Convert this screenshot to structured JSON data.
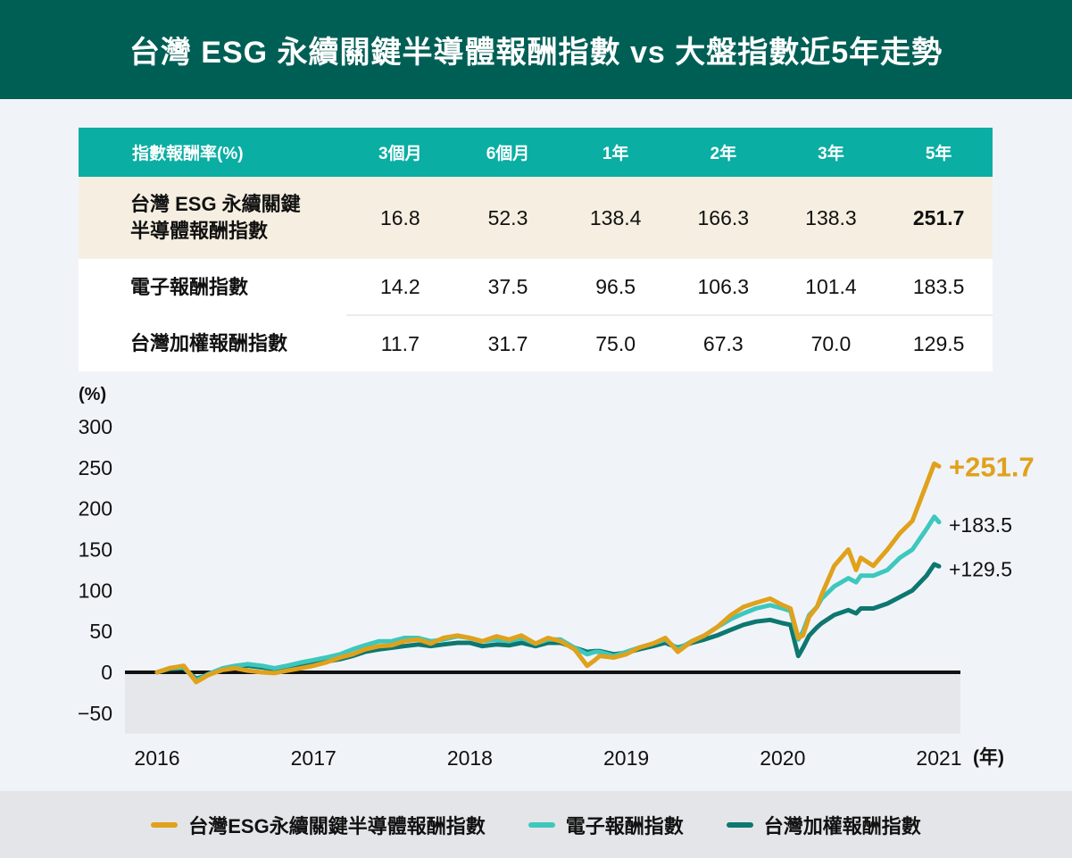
{
  "title": "台灣 ESG 永續關鍵半導體報酬指數 vs 大盤指數近5年走勢",
  "colors": {
    "header_bg": "#005f55",
    "table_header_bg": "#0aaea3",
    "highlight_row_bg": "#f6efe1",
    "esg": "#e0a11b",
    "electronics": "#3ec7bd",
    "taiex": "#0d7770"
  },
  "table": {
    "header": [
      "指數報酬率(%)",
      "3個月",
      "6個月",
      "1年",
      "2年",
      "3年",
      "5年"
    ],
    "rows": [
      {
        "name": [
          "台灣 ESG 永續關鍵",
          "半導體報酬指數"
        ],
        "values": [
          "16.8",
          "52.3",
          "138.4",
          "166.3",
          "138.3",
          "251.7"
        ]
      },
      {
        "name": [
          "電子報酬指數"
        ],
        "values": [
          "14.2",
          "37.5",
          "96.5",
          "106.3",
          "101.4",
          "183.5"
        ]
      },
      {
        "name": [
          "台灣加權報酬指數"
        ],
        "values": [
          "11.7",
          "31.7",
          "75.0",
          "67.3",
          "70.0",
          "129.5"
        ]
      }
    ]
  },
  "chart_data": {
    "type": "line",
    "ylabel": "(%)",
    "xlabel": "(年)",
    "ylim": [
      -75,
      300
    ],
    "yticks": [
      "300",
      "250",
      "200",
      "150",
      "100",
      "50",
      "0",
      "−50"
    ],
    "ytick_values": [
      300,
      250,
      200,
      150,
      100,
      50,
      0,
      -50
    ],
    "xlim": [
      2016.0,
      2021.0
    ],
    "xticks": [
      "2016",
      "2017",
      "2018",
      "2019",
      "2020",
      "2021"
    ],
    "xtick_values": [
      2016,
      2017,
      2018,
      2019,
      2020,
      2021
    ],
    "series": [
      {
        "name": "台灣ESG永續關鍵半導體報酬指數",
        "end_label": "+251.7",
        "x": [
          2016.0,
          2016.08,
          2016.17,
          2016.25,
          2016.33,
          2016.42,
          2016.5,
          2016.58,
          2016.67,
          2016.75,
          2016.83,
          2016.92,
          2017.0,
          2017.08,
          2017.17,
          2017.25,
          2017.33,
          2017.42,
          2017.5,
          2017.58,
          2017.67,
          2017.75,
          2017.83,
          2017.92,
          2018.0,
          2018.08,
          2018.17,
          2018.25,
          2018.33,
          2018.42,
          2018.5,
          2018.58,
          2018.67,
          2018.75,
          2018.8,
          2018.83,
          2018.92,
          2019.0,
          2019.08,
          2019.17,
          2019.25,
          2019.33,
          2019.42,
          2019.5,
          2019.58,
          2019.67,
          2019.75,
          2019.83,
          2019.92,
          2020.0,
          2020.05,
          2020.1,
          2020.13,
          2020.17,
          2020.22,
          2020.25,
          2020.33,
          2020.42,
          2020.47,
          2020.5,
          2020.58,
          2020.67,
          2020.75,
          2020.83,
          2020.92,
          2020.97,
          2021.0
        ],
        "y": [
          0,
          5,
          8,
          -12,
          -3,
          3,
          5,
          2,
          0,
          -1,
          2,
          5,
          8,
          12,
          18,
          22,
          28,
          32,
          33,
          38,
          40,
          35,
          42,
          45,
          42,
          38,
          44,
          40,
          45,
          35,
          42,
          38,
          28,
          8,
          15,
          20,
          18,
          22,
          30,
          35,
          42,
          25,
          38,
          45,
          55,
          70,
          80,
          85,
          90,
          82,
          78,
          42,
          45,
          68,
          80,
          95,
          130,
          150,
          125,
          140,
          130,
          150,
          170,
          185,
          230,
          255,
          251.7
        ]
      },
      {
        "name": "電子報酬指數",
        "end_label": "+183.5",
        "x": [
          2016.0,
          2016.08,
          2016.17,
          2016.25,
          2016.33,
          2016.42,
          2016.5,
          2016.58,
          2016.67,
          2016.75,
          2016.83,
          2016.92,
          2017.0,
          2017.08,
          2017.17,
          2017.25,
          2017.33,
          2017.42,
          2017.5,
          2017.58,
          2017.67,
          2017.75,
          2017.83,
          2017.92,
          2018.0,
          2018.08,
          2018.17,
          2018.25,
          2018.33,
          2018.42,
          2018.5,
          2018.58,
          2018.67,
          2018.75,
          2018.8,
          2018.83,
          2018.92,
          2019.0,
          2019.08,
          2019.17,
          2019.25,
          2019.33,
          2019.42,
          2019.5,
          2019.58,
          2019.67,
          2019.75,
          2019.83,
          2019.92,
          2020.0,
          2020.05,
          2020.1,
          2020.13,
          2020.17,
          2020.22,
          2020.25,
          2020.33,
          2020.42,
          2020.47,
          2020.5,
          2020.58,
          2020.67,
          2020.75,
          2020.83,
          2020.92,
          2020.97,
          2021.0
        ],
        "y": [
          0,
          5,
          6,
          -10,
          -2,
          5,
          8,
          10,
          8,
          5,
          8,
          12,
          15,
          18,
          22,
          28,
          33,
          38,
          38,
          42,
          42,
          38,
          40,
          44,
          42,
          38,
          40,
          38,
          42,
          35,
          40,
          40,
          30,
          22,
          25,
          25,
          20,
          25,
          30,
          35,
          40,
          28,
          38,
          45,
          55,
          65,
          72,
          78,
          82,
          78,
          75,
          40,
          50,
          70,
          80,
          90,
          105,
          115,
          110,
          118,
          118,
          125,
          140,
          150,
          175,
          190,
          183.5
        ]
      },
      {
        "name": "台灣加權報酬指數",
        "end_label": "+129.5",
        "x": [
          2016.0,
          2016.08,
          2016.17,
          2016.25,
          2016.33,
          2016.42,
          2016.5,
          2016.58,
          2016.67,
          2016.75,
          2016.83,
          2016.92,
          2017.0,
          2017.08,
          2017.17,
          2017.25,
          2017.33,
          2017.42,
          2017.5,
          2017.58,
          2017.67,
          2017.75,
          2017.83,
          2017.92,
          2018.0,
          2018.08,
          2018.17,
          2018.25,
          2018.33,
          2018.42,
          2018.5,
          2018.58,
          2018.67,
          2018.75,
          2018.8,
          2018.83,
          2018.92,
          2019.0,
          2019.08,
          2019.17,
          2019.25,
          2019.33,
          2019.42,
          2019.5,
          2019.58,
          2019.67,
          2019.75,
          2019.83,
          2019.92,
          2020.0,
          2020.05,
          2020.1,
          2020.13,
          2020.17,
          2020.22,
          2020.25,
          2020.33,
          2020.42,
          2020.47,
          2020.5,
          2020.58,
          2020.67,
          2020.75,
          2020.83,
          2020.92,
          2020.97,
          2021.0
        ],
        "y": [
          0,
          4,
          5,
          -8,
          -3,
          4,
          6,
          8,
          6,
          4,
          6,
          8,
          10,
          13,
          16,
          20,
          25,
          28,
          30,
          32,
          34,
          32,
          34,
          36,
          36,
          32,
          34,
          33,
          36,
          32,
          36,
          36,
          30,
          25,
          26,
          26,
          22,
          24,
          28,
          32,
          36,
          30,
          36,
          40,
          45,
          52,
          58,
          62,
          64,
          60,
          58,
          20,
          30,
          45,
          55,
          60,
          70,
          76,
          72,
          78,
          78,
          84,
          92,
          100,
          118,
          132,
          129.5
        ]
      }
    ],
    "legend": [
      "台灣ESG永續關鍵半導體報酬指數",
      "電子報酬指數",
      "台灣加權報酬指數"
    ],
    "legend_placement": "bottom"
  }
}
